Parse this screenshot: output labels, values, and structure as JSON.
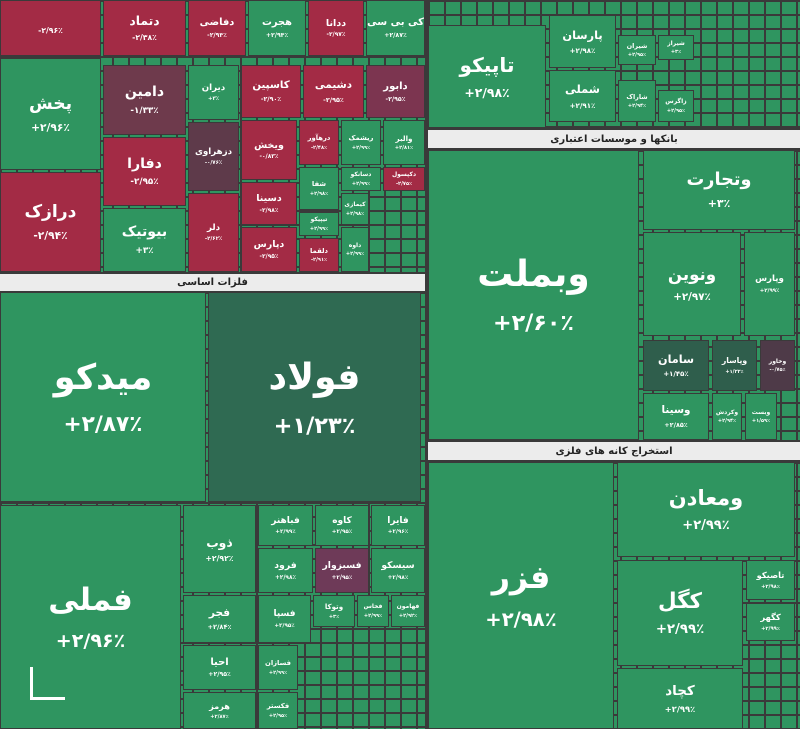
{
  "sections": [
    {
      "title": "فلزات اساسی"
    },
    {
      "title": "بانکها و موسسات اعتباری"
    },
    {
      "title": "استخراج کانه های فلزی"
    }
  ],
  "tiles": [
    {
      "change": "-۲/۹۶٪",
      "color": "#a32b45"
    },
    {
      "label": "دتماد",
      "change": "-۲/۳۸٪",
      "color": "#a32b45"
    },
    {
      "label": "دفاضی",
      "change": "-۲/۹۴٪",
      "color": "#a32b45"
    },
    {
      "label": "هجرت",
      "change": "+۲/۹۴٪",
      "color": "#2f9560"
    },
    {
      "label": "ددانا",
      "change": "-۲/۹۷٪",
      "color": "#a32b45"
    },
    {
      "label": "کی بی سی",
      "change": "+۲/۸۷٪",
      "color": "#2f9560"
    },
    {
      "label": "پخش",
      "change": "+۲/۹۶٪",
      "color": "#2f9560"
    },
    {
      "label": "دامین",
      "change": "-۱/۳۳٪",
      "color": "#6e3a4c"
    },
    {
      "label": "دیران",
      "change": "+۳٪",
      "color": "#2f9560"
    },
    {
      "label": "کاسپین",
      "change": "-۲/۹۰٪",
      "color": "#a32b45"
    },
    {
      "label": "دشیمی",
      "change": "-۲/۹۵٪",
      "color": "#a32b45"
    },
    {
      "label": "دابور",
      "change": "-۲/۹۵٪",
      "color": "#7c3550"
    },
    {
      "label": "درازک",
      "change": "-۲/۹۴٪",
      "color": "#a32b45"
    },
    {
      "label": "دفارا",
      "change": "-۲/۹۵٪",
      "color": "#a32b45"
    },
    {
      "label": "دزهراوی",
      "change": "-۰/۷۶٪",
      "color": "#5e3a4a"
    },
    {
      "label": "ویخش",
      "change": "-۰/۸۳٪",
      "color": "#a32b45"
    },
    {
      "label": "درهآور",
      "change": "-۲/۴۸٪",
      "color": "#a32b45"
    },
    {
      "label": "ریشمک",
      "change": "+۲/۹۹٪",
      "color": "#2f9560"
    },
    {
      "label": "والبر",
      "change": "+۲/۸۱٪",
      "color": "#2f9560"
    },
    {
      "label": "بیوتیک",
      "change": "+۳٪",
      "color": "#2f9560"
    },
    {
      "label": "دلر",
      "change": "-۲/۶۲٪",
      "color": "#a32b45"
    },
    {
      "label": "دسینا",
      "change": "-۲/۹۸٪",
      "color": "#a32b45"
    },
    {
      "label": "شفا",
      "change": "+۲/۹۸٪",
      "color": "#2f9560"
    },
    {
      "label": "دسانکو",
      "change": "+۲/۹۹٪",
      "color": "#2f9560"
    },
    {
      "label": "دکپسول",
      "change": "-۲/۷۵٪",
      "color": "#a32b45"
    },
    {
      "label": "دپارس",
      "change": "-۲/۹۵٪",
      "color": "#a32b45"
    },
    {
      "label": "تیپیکو",
      "change": "+۲/۹۹٪",
      "color": "#2f9560"
    },
    {
      "label": "دلقما",
      "change": "-۲/۹۱٪",
      "color": "#a32b45"
    },
    {
      "label": "کیمازی",
      "change": "+۲/۹۸٪",
      "color": "#2f9560"
    },
    {
      "label": "داوه",
      "change": "+۲/۹۹٪",
      "color": "#2f9560"
    },
    {
      "label": "میدکو",
      "change": "+۲/۸۷٪",
      "color": "#2f9560"
    },
    {
      "label": "فولاد",
      "change": "+۱/۲۳٪",
      "color": "#2f6a52"
    },
    {
      "label": "فملی",
      "change": "+۲/۹۶٪",
      "color": "#2f9560"
    },
    {
      "label": "ذوب",
      "change": "+۲/۹۲٪",
      "color": "#2f9560"
    },
    {
      "label": "فباهنر",
      "change": "+۲/۹۹٪",
      "color": "#2f9560"
    },
    {
      "label": "کاوه",
      "change": "+۲/۹۵٪",
      "color": "#2f9560"
    },
    {
      "label": "فایرا",
      "change": "+۲/۹۶٪",
      "color": "#2f9560"
    },
    {
      "label": "فرود",
      "change": "+۲/۹۸٪",
      "color": "#2f9560"
    },
    {
      "label": "فسبزوار",
      "change": "+۲/۹۵٪",
      "color": "#6e3a58"
    },
    {
      "label": "سیسکو",
      "change": "+۲/۹۸٪",
      "color": "#2f9560"
    },
    {
      "label": "فجر",
      "change": "+۲/۸۴٪",
      "color": "#2f9560"
    },
    {
      "label": "فسپا",
      "change": "+۲/۹۵٪",
      "color": "#2f9560"
    },
    {
      "label": "وتوکا",
      "change": "+۳٪",
      "color": "#2f9560"
    },
    {
      "label": "فخاس",
      "change": "+۲/۹۹٪",
      "color": "#2f9560"
    },
    {
      "label": "فهامون",
      "change": "+۲/۹۲٪",
      "color": "#2f9560"
    },
    {
      "label": "احیا",
      "change": "+۲/۹۵٪",
      "color": "#2f9560"
    },
    {
      "label": "فسازان",
      "change": "+۲/۹۹٪",
      "color": "#2f9560"
    },
    {
      "label": "هرمز",
      "change": "+۲/۸۷٪",
      "color": "#2f9560"
    },
    {
      "label": "فکستر",
      "change": "+۲/۹۵٪",
      "color": "#2f9560"
    },
    {
      "label": "تاپیکو",
      "change": "+۲/۹۸٪",
      "color": "#2f9560"
    },
    {
      "label": "پارسان",
      "change": "+۲/۹۸٪",
      "color": "#2f9560"
    },
    {
      "label": "شیران",
      "change": "+۲/۹۵٪",
      "color": "#2f9560"
    },
    {
      "label": "شیراز",
      "change": "+۳٪",
      "color": "#2f9560"
    },
    {
      "label": "شملی",
      "change": "+۲/۹۱٪",
      "color": "#2f9560"
    },
    {
      "label": "شاراک",
      "change": "+۲/۹۴٪",
      "color": "#2f9560"
    },
    {
      "label": "زاگرس",
      "change": "+۲/۹۵٪",
      "color": "#2f9560"
    },
    {
      "label": "وبملت",
      "change": "+۲/۶۰٪",
      "color": "#2f9560"
    },
    {
      "label": "وتجارت",
      "change": "+۳٪",
      "color": "#2f9560"
    },
    {
      "label": "ونوین",
      "change": "+۲/۹۷٪",
      "color": "#2f9560"
    },
    {
      "label": "وپارس",
      "change": "+۲/۹۹٪",
      "color": "#2f9560"
    },
    {
      "label": "سامان",
      "change": "+۱/۴۵٪",
      "color": "#2f5e4c"
    },
    {
      "label": "وپاسار",
      "change": "+۱/۲۲٪",
      "color": "#2f5e4c"
    },
    {
      "label": "وخاور",
      "change": "-۰/۷۵٪",
      "color": "#4e3a48"
    },
    {
      "label": "وسینا",
      "change": "+۲/۸۵٪",
      "color": "#2f9560"
    },
    {
      "label": "وکردش",
      "change": "+۲/۹۴٪",
      "color": "#2f9560"
    },
    {
      "label": "وبست",
      "change": "+۱/۵۹٪",
      "color": "#2f9560"
    },
    {
      "label": "فزر",
      "change": "+۲/۹۸٪",
      "color": "#2f9560"
    },
    {
      "label": "ومعادن",
      "change": "+۲/۹۹٪",
      "color": "#2f9560"
    },
    {
      "label": "کگل",
      "change": "+۲/۹۹٪",
      "color": "#2f9560"
    },
    {
      "label": "تاصیکو",
      "change": "+۲/۹۸٪",
      "color": "#2f9560"
    },
    {
      "label": "کگهر",
      "change": "+۲/۹۹٪",
      "color": "#2f9560"
    },
    {
      "label": "کچاد",
      "change": "+۲/۹۹٪",
      "color": "#2f9560"
    }
  ]
}
